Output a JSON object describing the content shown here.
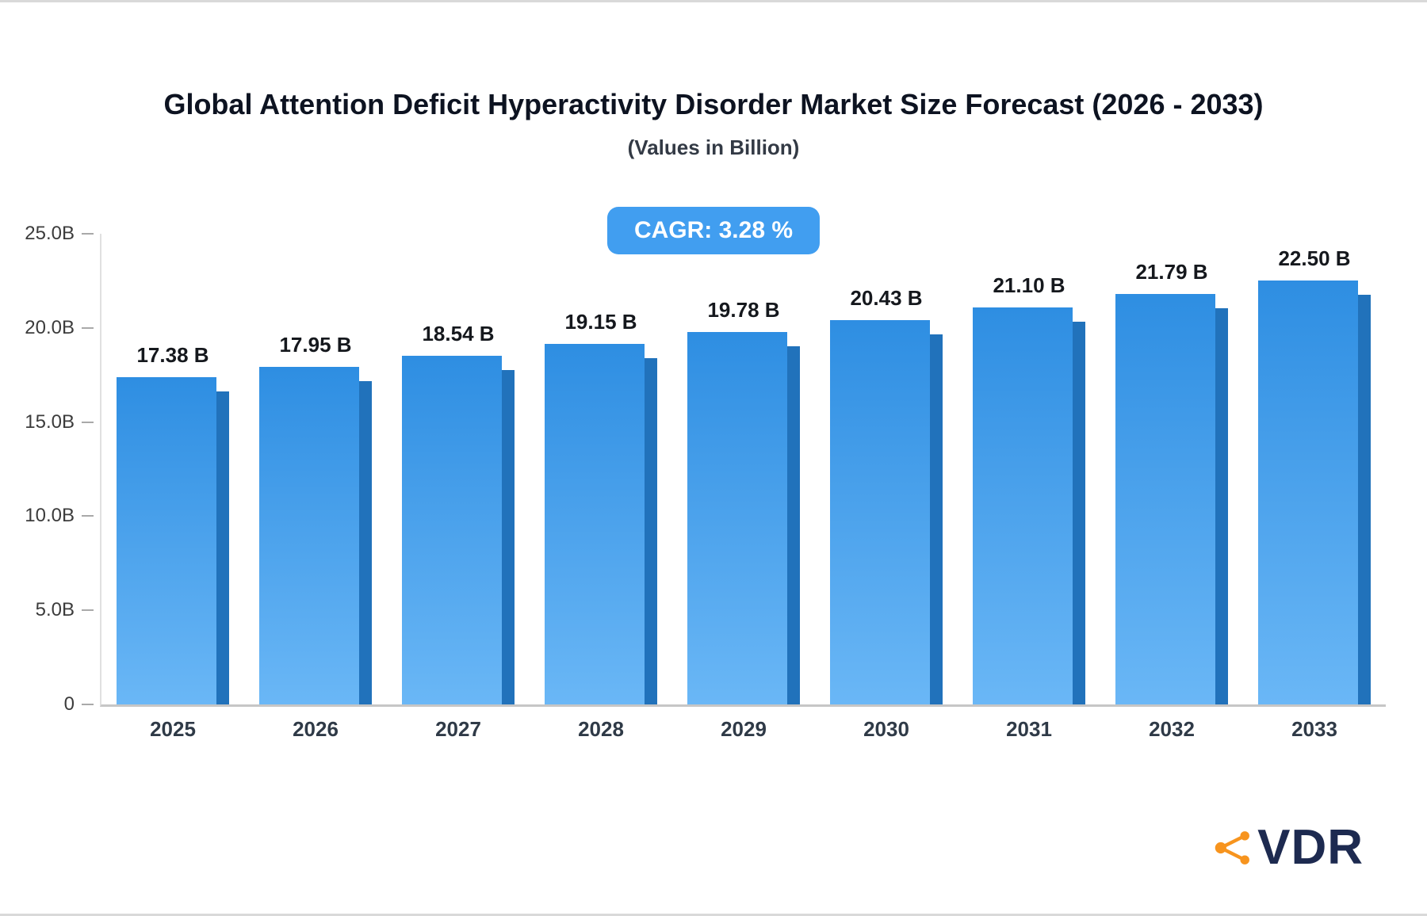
{
  "header": {
    "title": "Global Attention Deficit Hyperactivity Disorder Market Size Forecast (2026 - 2033)",
    "subtitle": "(Values in Billion)"
  },
  "cagr": {
    "label": "CAGR: 3.28 %",
    "bg": "#419EF0",
    "text_color": "#FFFFFF"
  },
  "chart_data": {
    "type": "bar",
    "title": "Global Attention Deficit Hyperactivity Disorder Market Size Forecast (2026 - 2033)",
    "subtitle": "(Values in Billion)",
    "categories": [
      "2025",
      "2026",
      "2027",
      "2028",
      "2029",
      "2030",
      "2031",
      "2032",
      "2033"
    ],
    "values": [
      17.38,
      17.95,
      18.54,
      19.15,
      19.78,
      20.43,
      21.1,
      21.79,
      22.5
    ],
    "value_labels": [
      "17.38 B",
      "17.95 B",
      "18.54 B",
      "19.15 B",
      "19.78 B",
      "20.43 B",
      "21.10 B",
      "21.79 B",
      "22.50 B"
    ],
    "xlabel": "",
    "ylabel": "",
    "ylim": [
      0,
      25
    ],
    "ytick_labels": [
      "0",
      "5.0B",
      "10.0B",
      "15.0B",
      "20.0B",
      "25.0B"
    ],
    "grid": false,
    "legend": false,
    "annotation": "CAGR: 3.28 %",
    "bar_colors": {
      "front_top": "#2E8EE2",
      "front_bottom": "#6AB7F6",
      "side": "#2172BB"
    }
  },
  "logo": {
    "text": "VDR",
    "icon": "share-network-icon",
    "icon_color": "#F7941E",
    "text_color": "#1D2A50"
  }
}
